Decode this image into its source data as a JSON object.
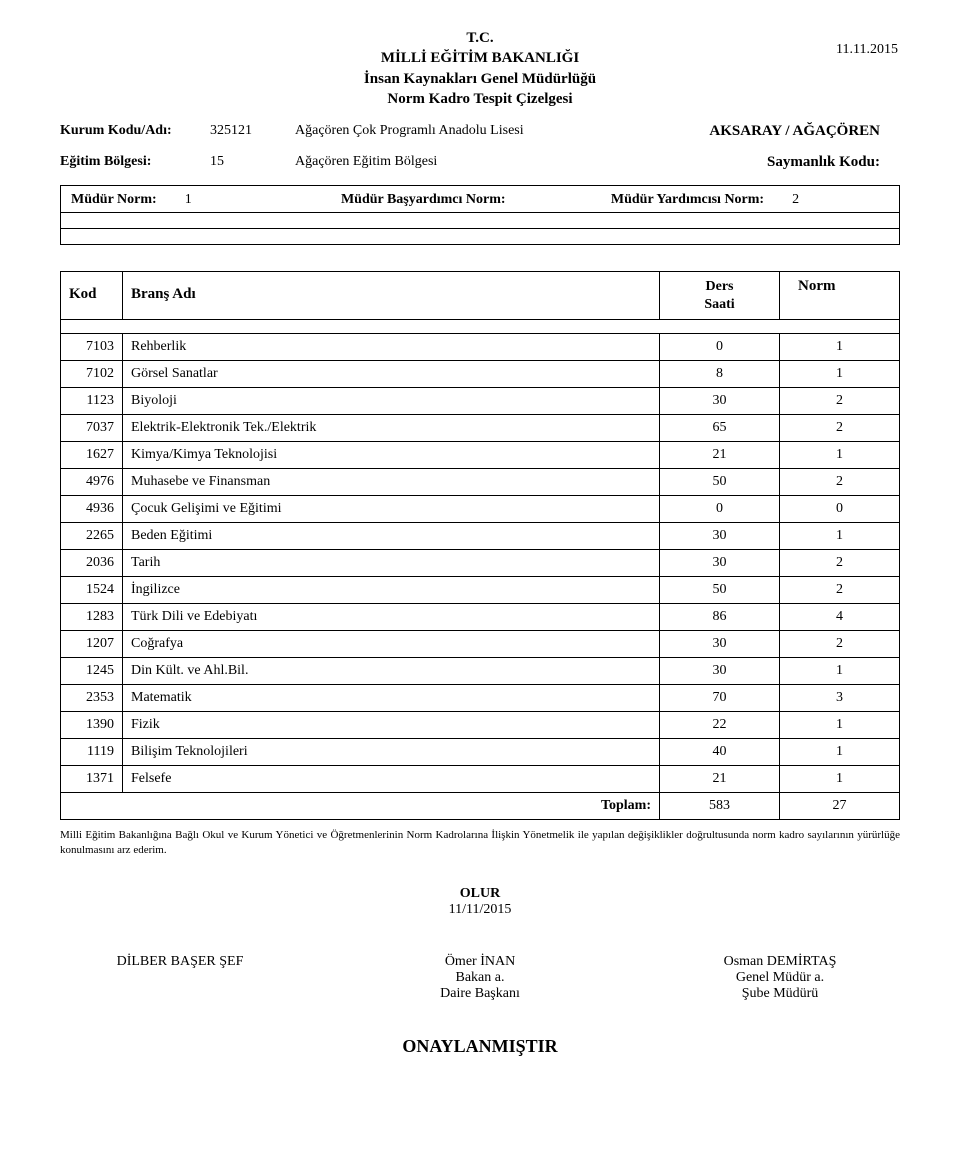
{
  "header": {
    "line1": "T.C.",
    "line2": "MİLLİ EĞİTİM BAKANLIĞI",
    "line3": "İnsan Kaynakları Genel Müdürlüğü",
    "line4": "Norm Kadro Tespit Çizelgesi",
    "date": "11.11.2015"
  },
  "info": {
    "kurum_label": "Kurum Kodu/Adı:",
    "kurum_code": "325121",
    "kurum_name": "Ağaçören Çok Programlı Anadolu Lisesi",
    "province": "AKSARAY / AĞAÇÖREN",
    "egitim_label": "Eğitim Bölgesi:",
    "egitim_code": "15",
    "egitim_name": "Ağaçören Eğitim Bölgesi",
    "saymanlik_label": "Saymanlık Kodu:"
  },
  "norms": {
    "mudur_label": "Müdür Norm:",
    "mudur_val": "1",
    "basyar_label": "Müdür Başyardımcı Norm:",
    "basyar_val": "",
    "yardimci_label": "Müdür Yardımcısı Norm:",
    "yardimci_val": "2"
  },
  "table": {
    "head_kod": "Kod",
    "head_brans": "Branş Adı",
    "head_ders1": "Ders",
    "head_ders2": "Saati",
    "head_norm": "Norm",
    "rows": [
      {
        "kod": "7103",
        "brans": "Rehberlik",
        "ders": "0",
        "norm": "1"
      },
      {
        "kod": "7102",
        "brans": "Görsel Sanatlar",
        "ders": "8",
        "norm": "1"
      },
      {
        "kod": "1123",
        "brans": "Biyoloji",
        "ders": "30",
        "norm": "2"
      },
      {
        "kod": "7037",
        "brans": "Elektrik-Elektronik Tek./Elektrik",
        "ders": "65",
        "norm": "2"
      },
      {
        "kod": "1627",
        "brans": "Kimya/Kimya Teknolojisi",
        "ders": "21",
        "norm": "1"
      },
      {
        "kod": "4976",
        "brans": "Muhasebe ve Finansman",
        "ders": "50",
        "norm": "2"
      },
      {
        "kod": "4936",
        "brans": "Çocuk Gelişimi ve Eğitimi",
        "ders": "0",
        "norm": "0"
      },
      {
        "kod": "2265",
        "brans": "Beden Eğitimi",
        "ders": "30",
        "norm": "1"
      },
      {
        "kod": "2036",
        "brans": "Tarih",
        "ders": "30",
        "norm": "2"
      },
      {
        "kod": "1524",
        "brans": "İngilizce",
        "ders": "50",
        "norm": "2"
      },
      {
        "kod": "1283",
        "brans": "Türk Dili ve Edebiyatı",
        "ders": "86",
        "norm": "4"
      },
      {
        "kod": "1207",
        "brans": "Coğrafya",
        "ders": "30",
        "norm": "2"
      },
      {
        "kod": "1245",
        "brans": "Din Kült. ve Ahl.Bil.",
        "ders": "30",
        "norm": "1"
      },
      {
        "kod": "2353",
        "brans": "Matematik",
        "ders": "70",
        "norm": "3"
      },
      {
        "kod": "1390",
        "brans": "Fizik",
        "ders": "22",
        "norm": "1"
      },
      {
        "kod": "1119",
        "brans": "Bilişim Teknolojileri",
        "ders": "40",
        "norm": "1"
      },
      {
        "kod": "1371",
        "brans": "Felsefe",
        "ders": "21",
        "norm": "1"
      }
    ],
    "total_label": "Toplam:",
    "total_ders": "583",
    "total_norm": "27"
  },
  "footnote": "Milli Eğitim Bakanlığına Bağlı Okul ve Kurum Yönetici ve Öğretmenlerinin Norm Kadrolarına İlişkin Yönetmelik ile yapılan değişiklikler doğrultusunda norm kadro sayılarının yürürlüğe konulmasını arz ederim.",
  "approve": {
    "olur": "OLUR",
    "date": "11/11/2015"
  },
  "signatures": {
    "left": {
      "name": "DİLBER BAŞER ŞEF",
      "title1": "",
      "title2": ""
    },
    "mid": {
      "name": "Ömer İNAN",
      "title1": "Bakan a.",
      "title2": "Daire Başkanı"
    },
    "right": {
      "name": "Osman DEMİRTAŞ",
      "title1": "Genel Müdür a.",
      "title2": "Şube Müdürü"
    }
  },
  "stamp": "ONAYLANMIŞTIR"
}
